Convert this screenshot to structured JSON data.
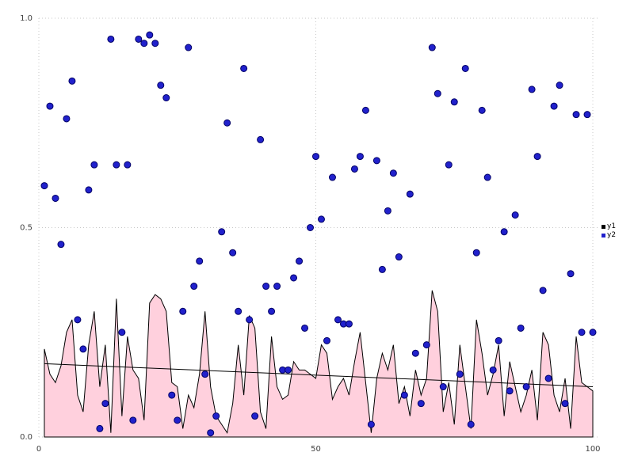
{
  "legend": {
    "items": [
      {
        "label": "y1",
        "color": "#000000"
      },
      {
        "label": "y2",
        "color": "#2121cc"
      }
    ]
  },
  "chart_data": {
    "type": "area+scatter",
    "title": "",
    "xlabel": "",
    "ylabel": "",
    "xlim": [
      0,
      101
    ],
    "ylim": [
      0.0,
      1.0
    ],
    "grid": "dotted",
    "legend_position": "right",
    "x_ticks": [
      {
        "v": 0,
        "label": "0"
      },
      {
        "v": 50,
        "label": "50"
      },
      {
        "v": 100,
        "label": "100"
      }
    ],
    "y_ticks": [
      {
        "v": 0.0,
        "label": "0.0"
      },
      {
        "v": 0.5,
        "label": "0.5"
      },
      {
        "v": 1.0,
        "label": "1.0"
      }
    ],
    "colors": {
      "area_fill": "#ffd0dd",
      "area_stroke": "#000000",
      "scatter_fill": "#2121cc",
      "scatter_stroke": "#000066",
      "trend_stroke": "#000000",
      "grid": "#c8c8c8",
      "tick_text": "#404040"
    },
    "x": [
      1,
      2,
      3,
      4,
      5,
      6,
      7,
      8,
      9,
      10,
      11,
      12,
      13,
      14,
      15,
      16,
      17,
      18,
      19,
      20,
      21,
      22,
      23,
      24,
      25,
      26,
      27,
      28,
      29,
      30,
      31,
      32,
      33,
      34,
      35,
      36,
      37,
      38,
      39,
      40,
      41,
      42,
      43,
      44,
      45,
      46,
      47,
      48,
      49,
      50,
      51,
      52,
      53,
      54,
      55,
      56,
      57,
      58,
      59,
      60,
      61,
      62,
      63,
      64,
      65,
      66,
      67,
      68,
      69,
      70,
      71,
      72,
      73,
      74,
      75,
      76,
      77,
      78,
      79,
      80,
      81,
      82,
      83,
      84,
      85,
      86,
      87,
      88,
      89,
      90,
      91,
      92,
      93,
      94,
      95,
      96,
      97,
      98,
      99,
      100
    ],
    "series": [
      {
        "name": "y1",
        "type": "area",
        "values": [
          0.21,
          0.15,
          0.13,
          0.17,
          0.25,
          0.28,
          0.1,
          0.06,
          0.22,
          0.3,
          0.12,
          0.22,
          0.01,
          0.33,
          0.05,
          0.24,
          0.16,
          0.14,
          0.04,
          0.32,
          0.34,
          0.33,
          0.3,
          0.13,
          0.12,
          0.02,
          0.1,
          0.07,
          0.15,
          0.3,
          0.12,
          0.05,
          0.03,
          0.01,
          0.08,
          0.22,
          0.1,
          0.29,
          0.26,
          0.06,
          0.02,
          0.24,
          0.12,
          0.09,
          0.1,
          0.18,
          0.16,
          0.16,
          0.15,
          0.14,
          0.22,
          0.2,
          0.09,
          0.12,
          0.14,
          0.1,
          0.18,
          0.25,
          0.13,
          0.01,
          0.14,
          0.2,
          0.16,
          0.22,
          0.08,
          0.12,
          0.05,
          0.16,
          0.1,
          0.14,
          0.35,
          0.3,
          0.06,
          0.13,
          0.03,
          0.22,
          0.12,
          0.02,
          0.28,
          0.2,
          0.1,
          0.15,
          0.22,
          0.05,
          0.18,
          0.12,
          0.06,
          0.1,
          0.16,
          0.04,
          0.25,
          0.22,
          0.1,
          0.06,
          0.14,
          0.02,
          0.24,
          0.13,
          0.12,
          0.11
        ]
      },
      {
        "name": "y2",
        "type": "scatter",
        "values": [
          0.6,
          0.79,
          0.57,
          0.46,
          0.76,
          0.85,
          0.28,
          0.21,
          0.59,
          0.65,
          0.02,
          0.08,
          0.95,
          0.65,
          0.25,
          0.65,
          0.04,
          0.95,
          0.94,
          0.96,
          0.94,
          0.84,
          0.81,
          0.1,
          0.04,
          0.3,
          0.93,
          0.36,
          0.42,
          0.15,
          0.01,
          0.05,
          0.49,
          0.75,
          0.44,
          0.3,
          0.88,
          0.28,
          0.05,
          0.71,
          0.36,
          0.3,
          0.36,
          0.16,
          0.16,
          0.38,
          0.42,
          0.26,
          0.5,
          0.67,
          0.52,
          0.23,
          0.62,
          0.28,
          0.27,
          0.27,
          0.64,
          0.67,
          0.78,
          0.03,
          0.66,
          0.4,
          0.54,
          0.63,
          0.43,
          0.1,
          0.58,
          0.2,
          0.08,
          0.22,
          0.93,
          0.82,
          0.12,
          0.65,
          0.8,
          0.15,
          0.88,
          0.03,
          0.44,
          0.78,
          0.62,
          0.16,
          0.23,
          0.49,
          0.11,
          0.53,
          0.26,
          0.12,
          0.83,
          0.67,
          0.35,
          0.14,
          0.79,
          0.84,
          0.08,
          0.39,
          0.77,
          0.25,
          0.77,
          0.25
        ]
      }
    ],
    "trend": {
      "x": [
        1,
        100
      ],
      "y": [
        0.175,
        0.12
      ]
    }
  }
}
